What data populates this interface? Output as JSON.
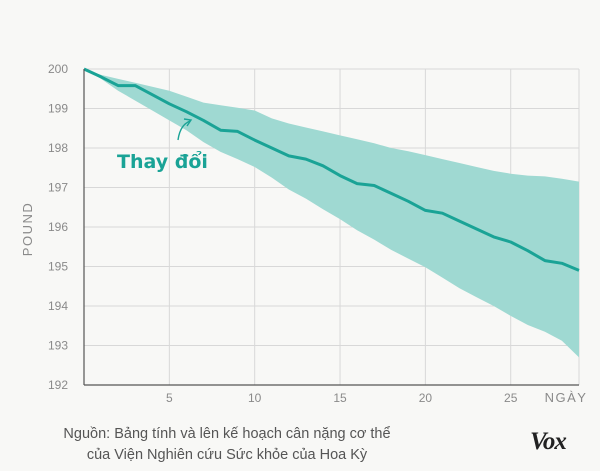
{
  "chart_data": {
    "type": "line",
    "ylabel": "POUND",
    "xlabel": "NGÀY",
    "xlim": [
      0,
      29
    ],
    "ylim": [
      192,
      200
    ],
    "xticks": [
      5,
      10,
      15,
      20,
      25
    ],
    "yticks": [
      192,
      193,
      194,
      195,
      196,
      197,
      198,
      199,
      200
    ],
    "grid": true,
    "annotation": "Thay đổi",
    "series": [
      {
        "x": [
          0,
          1,
          2,
          3,
          4,
          5,
          6,
          7,
          8,
          9,
          10,
          11,
          12,
          13,
          14,
          15,
          16,
          17,
          18,
          19,
          20,
          21,
          22,
          23,
          24,
          25,
          26,
          27,
          28,
          29
        ],
        "values": [
          200,
          199.8,
          199.58,
          199.58,
          199.35,
          199.12,
          198.92,
          198.7,
          198.45,
          198.42,
          198.2,
          198.0,
          197.8,
          197.72,
          197.55,
          197.3,
          197.1,
          197.05,
          196.85,
          196.65,
          196.42,
          196.35,
          196.15,
          195.95,
          195.75,
          195.62,
          195.4,
          195.15,
          195.08,
          194.9
        ]
      }
    ],
    "band": {
      "upper": [
        200,
        199.85,
        199.75,
        199.65,
        199.55,
        199.45,
        199.3,
        199.15,
        199.08,
        199.02,
        198.95,
        198.75,
        198.62,
        198.52,
        198.42,
        198.32,
        198.22,
        198.12,
        198.0,
        197.92,
        197.82,
        197.72,
        197.62,
        197.52,
        197.42,
        197.35,
        197.3,
        197.28,
        197.22,
        197.15
      ],
      "lower": [
        200,
        199.75,
        199.45,
        199.2,
        198.95,
        198.7,
        198.45,
        198.15,
        197.9,
        197.72,
        197.52,
        197.25,
        196.95,
        196.72,
        196.45,
        196.2,
        195.92,
        195.68,
        195.42,
        195.2,
        194.98,
        194.72,
        194.45,
        194.22,
        194.0,
        193.75,
        193.52,
        193.35,
        193.12,
        192.7
      ]
    },
    "colors": {
      "line": "#1aa396",
      "band": "#9fd9d2",
      "grid": "#d8d8d8",
      "axis": "#555555"
    }
  },
  "footer": {
    "source_line1": "Nguồn: Bảng tính và lên kế hoạch cân nặng cơ thể",
    "source_line2": "của Viện Nghiên cứu Sức khỏe của Hoa Kỳ",
    "logo": "Vox"
  }
}
